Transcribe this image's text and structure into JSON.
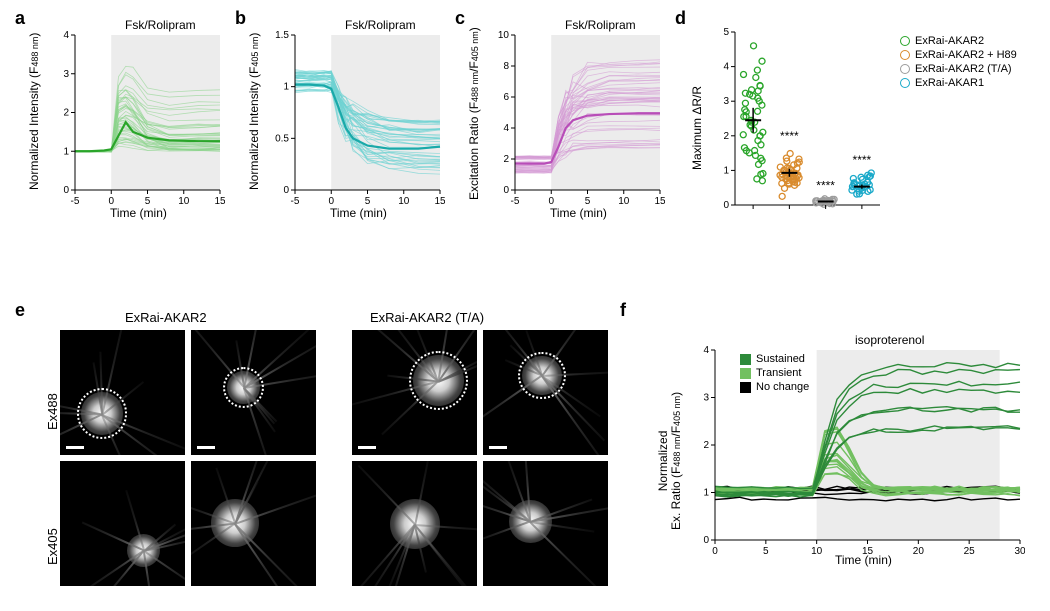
{
  "panel_a": {
    "label": "a",
    "type": "line",
    "title": "Fsk/Rolipram",
    "xlabel": "Time (min)",
    "ylabel": "Normalized Intensity (F488 nm)",
    "ylabel_sub": "488 nm",
    "xlim": [
      -5,
      15
    ],
    "ylim": [
      0,
      4
    ],
    "xticks": [
      -5,
      0,
      5,
      10,
      15
    ],
    "yticks": [
      0,
      1,
      2,
      3,
      4
    ],
    "shaded_x": [
      0,
      15
    ],
    "background_color": "#ffffff",
    "shaded_color": "#ececec",
    "axis_color": "#000000",
    "trace_color": "#8cd48c",
    "mean_color": "#2aa52a",
    "line_width_trace": 0.8,
    "line_width_mean": 2.2,
    "label_fontsize": 12,
    "n_traces": 45,
    "traces_random_seed": 1,
    "baseline": [
      1.0,
      1.0
    ],
    "peak_range": [
      1.1,
      3.5
    ],
    "mean_x": [
      -5,
      -3,
      -1,
      0,
      1,
      2,
      3,
      5,
      8,
      12,
      15
    ],
    "mean_y": [
      1.0,
      1.0,
      1.02,
      1.05,
      1.4,
      1.75,
      1.5,
      1.35,
      1.28,
      1.26,
      1.26
    ]
  },
  "panel_b": {
    "label": "b",
    "type": "line",
    "title": "Fsk/Rolipram",
    "xlabel": "Time (min)",
    "ylabel": "Normalized Intensity (F405 nm)",
    "ylabel_sub": "405 nm",
    "xlim": [
      -5,
      15
    ],
    "ylim": [
      0,
      1.5
    ],
    "xticks": [
      -5,
      0,
      5,
      10,
      15
    ],
    "yticks": [
      0,
      0.5,
      1.0,
      1.5
    ],
    "shaded_x": [
      0,
      15
    ],
    "shaded_color": "#ececec",
    "trace_color": "#6ed3d3",
    "mean_color": "#1aa9a9",
    "line_width_trace": 0.8,
    "line_width_mean": 2.2,
    "n_traces": 45,
    "baseline": [
      0.95,
      1.15
    ],
    "end_range": [
      0.15,
      0.68
    ],
    "mean_x": [
      -5,
      -3,
      -1,
      0,
      1,
      2,
      3,
      5,
      8,
      12,
      15
    ],
    "mean_y": [
      1.02,
      1.02,
      1.01,
      0.98,
      0.8,
      0.6,
      0.5,
      0.43,
      0.4,
      0.4,
      0.42
    ]
  },
  "panel_c": {
    "label": "c",
    "type": "line",
    "title": "Fsk/Rolipram",
    "xlabel": "Time (min)",
    "ylabel": "Excitation Ratio (F488 nm/F405 nm)",
    "xlim": [
      -5,
      15
    ],
    "ylim": [
      0,
      10
    ],
    "xticks": [
      -5,
      0,
      5,
      10,
      15
    ],
    "yticks": [
      0,
      2,
      4,
      6,
      8,
      10
    ],
    "shaded_x": [
      0,
      15
    ],
    "shaded_color": "#ececec",
    "trace_color": "#d49ad4",
    "mean_color": "#b84db8",
    "line_width_trace": 0.8,
    "line_width_mean": 2.2,
    "n_traces": 45,
    "baseline": [
      1.1,
      2.2
    ],
    "end_range": [
      2.5,
      8.5
    ],
    "mean_x": [
      -5,
      -3,
      -1,
      0,
      1,
      2,
      3,
      5,
      8,
      12,
      15
    ],
    "mean_y": [
      1.7,
      1.7,
      1.7,
      1.8,
      2.8,
      4.0,
      4.5,
      4.8,
      4.9,
      4.95,
      4.95
    ]
  },
  "panel_d": {
    "label": "d",
    "type": "scatter_strip",
    "xlabel": "",
    "ylabel": "Maximum ΔR/R",
    "ylim": [
      0,
      5
    ],
    "yticks": [
      0,
      1,
      2,
      3,
      4,
      5
    ],
    "groups": [
      {
        "name": "ExRai-AKAR2",
        "color": "#2aa52a",
        "n": 45,
        "mean": 2.45,
        "spread": [
          0.3,
          4.6
        ],
        "stars": ""
      },
      {
        "name": "ExRai-AKAR2 + H89",
        "color": "#d98b2d",
        "n": 42,
        "mean": 0.93,
        "spread": [
          0.25,
          1.65
        ],
        "stars": "****"
      },
      {
        "name": "ExRai-AKAR2 (T/A)",
        "color": "#9c9c9c",
        "n": 23,
        "mean": 0.1,
        "spread": [
          0.02,
          0.22
        ],
        "stars": "****"
      },
      {
        "name": "ExRai-AKAR1",
        "color": "#1aa9c9",
        "n": 28,
        "mean": 0.53,
        "spread": [
          0.22,
          0.95
        ],
        "stars": "****"
      }
    ],
    "marker_size": 6,
    "marker_fill": "#ffffff",
    "error_color": "#000000",
    "label_fontsize": 12
  },
  "panel_e": {
    "label": "e",
    "type": "microscopy_grid",
    "col_labels": [
      "ExRai-AKAR2",
      "ExRai-AKAR2 (T/A)"
    ],
    "row_labels": [
      "Ex488",
      "Ex405"
    ],
    "cell_bg": "#000000",
    "neuron_fill": "#ffffff",
    "dotted_color": "#ffffff",
    "scalebar_color": "#ffffff",
    "n_cols_per_group": 2
  },
  "panel_f": {
    "label": "f",
    "type": "line",
    "title": "isoproterenol",
    "xlabel": "Time (min)",
    "ylabel": "Normalized\nEx. Ratio (F488 nm/F405 nm)",
    "xlim": [
      0,
      30
    ],
    "ylim": [
      0,
      4
    ],
    "xticks": [
      0,
      5,
      10,
      15,
      20,
      25,
      30
    ],
    "yticks": [
      0,
      1,
      2,
      3,
      4
    ],
    "shaded_x": [
      10,
      28
    ],
    "shaded_color": "#ececec",
    "legend": [
      {
        "name": "Sustained",
        "color": "#2d8a3a"
      },
      {
        "name": "Transient",
        "color": "#72c060"
      },
      {
        "name": "No change",
        "color": "#000000"
      }
    ],
    "n_sustained": 8,
    "n_transient": 14,
    "n_nochange": 6,
    "sustained_peak": [
      2.3,
      3.7
    ],
    "transient_peak": [
      1.4,
      2.6
    ],
    "line_width": 1.4
  }
}
